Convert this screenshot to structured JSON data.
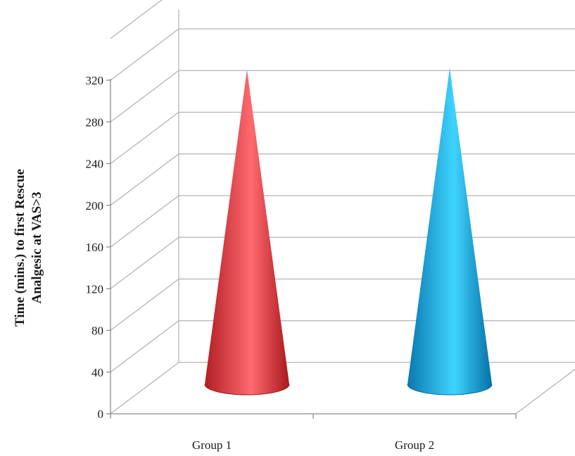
{
  "chart_data": {
    "type": "bar",
    "shape": "cone",
    "three_d": true,
    "categories": [
      "Group 1",
      "Group 2"
    ],
    "values": [
      322,
      324
    ],
    "ylabel_lines": [
      "Time (mins.) to first Rescue",
      "Analgesic at VAS>3"
    ],
    "ylim": [
      0,
      320
    ],
    "yticks": [
      0,
      40,
      80,
      120,
      160,
      200,
      240,
      280,
      320
    ],
    "grid": true,
    "legend": "none",
    "colors": {
      "Group 1": "#e8343a",
      "Group 2": "#1aa8e0"
    }
  }
}
